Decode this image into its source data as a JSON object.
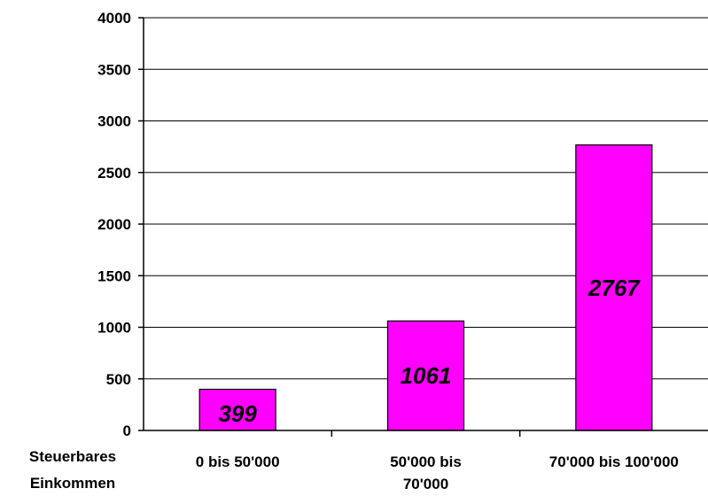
{
  "chart_data": {
    "type": "bar",
    "title": "",
    "xlabel": "Steuerbares Einkommen",
    "ylabel": "",
    "categories": [
      "0 bis   50'000",
      "50'000 bis 70'000",
      "70'000 bis 100'000"
    ],
    "category_lines": [
      [
        "0 bis   50'000"
      ],
      [
        "50'000 bis",
        "70'000"
      ],
      [
        "70'000 bis 100'000"
      ]
    ],
    "xlabel_lines": [
      "Steuerbares",
      "Einkommen"
    ],
    "values": [
      399,
      1061,
      2767
    ],
    "data_labels": [
      "399",
      "1061",
      "2767"
    ],
    "ylim": [
      0,
      4000
    ],
    "yticks": [
      0,
      500,
      1000,
      1500,
      2000,
      2500,
      3000,
      3500,
      4000
    ],
    "grid": true,
    "legend": "none",
    "bar_color": "#ff00ff"
  }
}
